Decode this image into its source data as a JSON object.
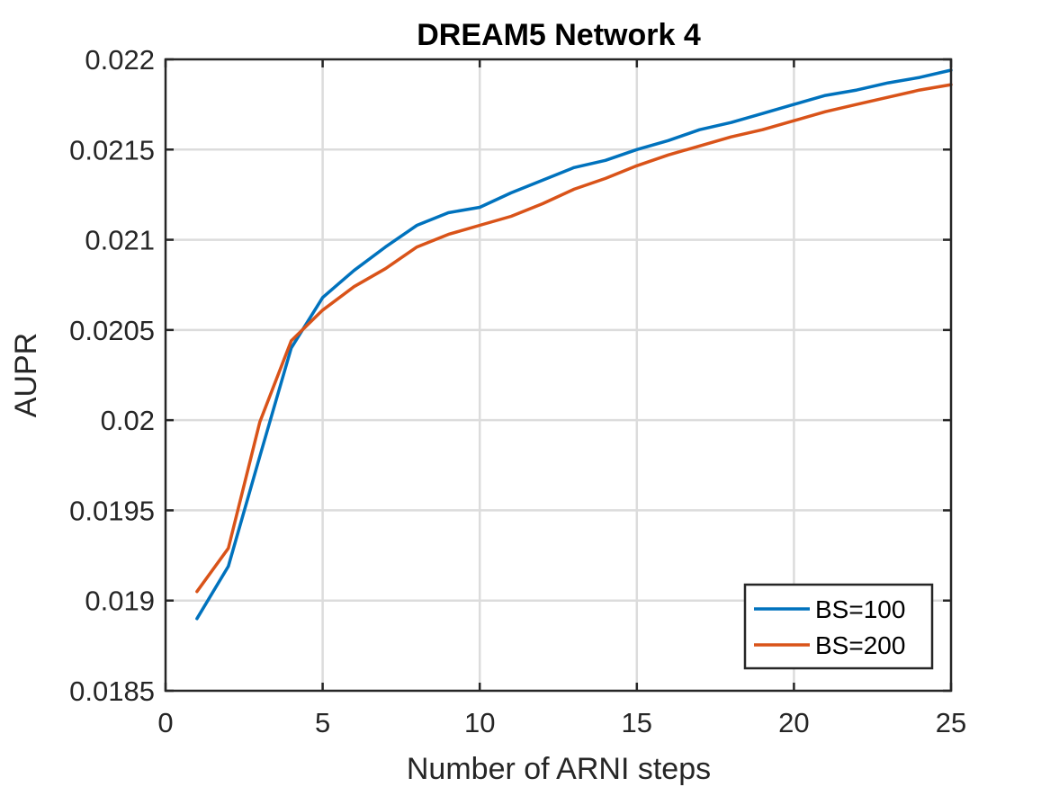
{
  "chart_data": {
    "type": "line",
    "title": "DREAM5 Network 4",
    "xlabel": "Number of ARNI steps",
    "ylabel": "AUPR",
    "xlim": [
      0,
      25
    ],
    "ylim": [
      0.0185,
      0.022
    ],
    "xticks": [
      0,
      5,
      10,
      15,
      20,
      25
    ],
    "xtick_labels": [
      "0",
      "5",
      "10",
      "15",
      "20",
      "25"
    ],
    "yticks": [
      0.0185,
      0.019,
      0.0195,
      0.02,
      0.0205,
      0.021,
      0.0215,
      0.022
    ],
    "ytick_labels": [
      "0.0185",
      "0.019",
      "0.0195",
      "0.02",
      "0.0205",
      "0.021",
      "0.0215",
      "0.022"
    ],
    "grid": true,
    "legend_position": "bottom-right",
    "x": [
      1,
      2,
      3,
      4,
      5,
      6,
      7,
      8,
      9,
      10,
      11,
      12,
      13,
      14,
      15,
      16,
      17,
      18,
      19,
      20,
      21,
      22,
      23,
      24,
      25
    ],
    "series": [
      {
        "name": "BS=100",
        "color": "#0072bd",
        "values": [
          0.0189,
          0.01919,
          0.0198,
          0.0204,
          0.02068,
          0.02083,
          0.02096,
          0.02108,
          0.02115,
          0.02118,
          0.02126,
          0.02133,
          0.0214,
          0.02144,
          0.0215,
          0.02155,
          0.02161,
          0.02165,
          0.0217,
          0.02175,
          0.0218,
          0.02183,
          0.02187,
          0.0219,
          0.02194
        ]
      },
      {
        "name": "BS=200",
        "color": "#d95319",
        "values": [
          0.01905,
          0.01929,
          0.01999,
          0.02044,
          0.02061,
          0.02074,
          0.02084,
          0.02096,
          0.02103,
          0.02108,
          0.02113,
          0.0212,
          0.02128,
          0.02134,
          0.02141,
          0.02147,
          0.02152,
          0.02157,
          0.02161,
          0.02166,
          0.02171,
          0.02175,
          0.02179,
          0.02183,
          0.02186
        ]
      }
    ]
  }
}
